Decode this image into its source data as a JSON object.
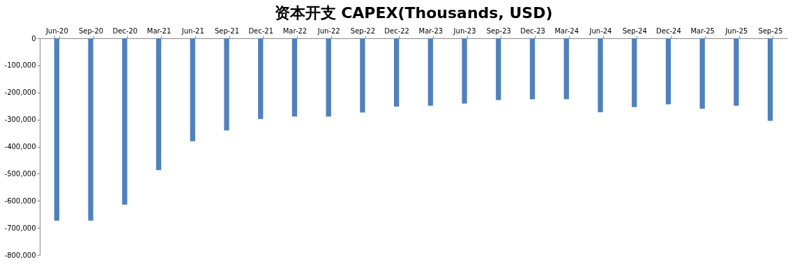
{
  "chart_data": {
    "type": "bar",
    "title": "资本开支 CAPEX(Thousands, USD)",
    "categories": [
      "Jun-20",
      "Sep-20",
      "Dec-20",
      "Mar-21",
      "Jun-21",
      "Sep-21",
      "Dec-21",
      "Mar-22",
      "Jun-22",
      "Sep-22",
      "Dec-22",
      "Mar-23",
      "Jun-23",
      "Sep-23",
      "Dec-23",
      "Mar-24",
      "Jun-24",
      "Sep-24",
      "Dec-24",
      "Mar-25",
      "Jun-25",
      "Sep-25"
    ],
    "values": [
      -673000,
      -673000,
      -614000,
      -487000,
      -380000,
      -340000,
      -298000,
      -289000,
      -289000,
      -274000,
      -252000,
      -249000,
      -241000,
      -228000,
      -225000,
      -225000,
      -273000,
      -254000,
      -244000,
      -260000,
      -249000,
      -305000
    ],
    "color": "#4f81bd",
    "ylim": [
      -800000,
      0
    ],
    "yticks": [
      {
        "value": -800000,
        "label": "-800,000"
      },
      {
        "value": -700000,
        "label": "-700,000"
      },
      {
        "value": -600000,
        "label": "-600,000"
      },
      {
        "value": -500000,
        "label": "-500,000"
      },
      {
        "value": -400000,
        "label": "-400,000"
      },
      {
        "value": -300000,
        "label": "-300,000"
      },
      {
        "value": -200000,
        "label": "-200,000"
      },
      {
        "value": -100000,
        "label": "-100,000"
      },
      {
        "value": 0,
        "label": "0"
      }
    ],
    "grid": false
  }
}
